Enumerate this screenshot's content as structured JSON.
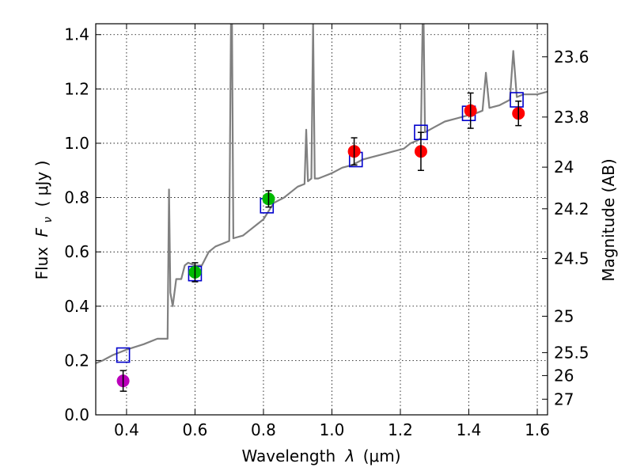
{
  "chart_data": {
    "type": "scatter",
    "title": "",
    "xlabel": "Wavelength",
    "xlabel_symbol": "λ",
    "xlabel_unit": "(μm)",
    "ylabel": "Flux",
    "ylabel_symbol": "F",
    "ylabel_subscript": "ν",
    "ylabel_unit": "( μJy )",
    "y2label": "Magnitude (AB)",
    "xlim": [
      0.31,
      1.63
    ],
    "ylim": [
      0.0,
      1.44
    ],
    "grid": true,
    "x_ticks": [
      "0.4",
      "0.6",
      "0.8",
      "1.0",
      "1.2",
      "1.4",
      "1.6"
    ],
    "y_ticks": [
      "0.0",
      "0.2",
      "0.4",
      "0.6",
      "0.8",
      "1.0",
      "1.2",
      "1.4"
    ],
    "mag_ticks": [
      "23.6",
      "23.8",
      "24",
      "24.2",
      "24.5",
      "25",
      "25.5",
      "26",
      "27"
    ],
    "colors": {
      "spectrum": "#808080",
      "model": "#0000cc",
      "uv": "#bb00bb",
      "optical": "#00bb00",
      "nir": "#ff0000",
      "grid": "#000000"
    },
    "series": [
      {
        "name": "model spectrum",
        "kind": "line",
        "points": [
          [
            0.31,
            0.19
          ],
          [
            0.33,
            0.2
          ],
          [
            0.36,
            0.22
          ],
          [
            0.4,
            0.24
          ],
          [
            0.45,
            0.26
          ],
          [
            0.49,
            0.28
          ],
          [
            0.51,
            0.28
          ],
          [
            0.52,
            0.28
          ],
          [
            0.524,
            0.83
          ],
          [
            0.528,
            0.45
          ],
          [
            0.535,
            0.4
          ],
          [
            0.545,
            0.5
          ],
          [
            0.56,
            0.5
          ],
          [
            0.57,
            0.55
          ],
          [
            0.58,
            0.56
          ],
          [
            0.6,
            0.55
          ],
          [
            0.62,
            0.55
          ],
          [
            0.64,
            0.6
          ],
          [
            0.66,
            0.62
          ],
          [
            0.68,
            0.63
          ],
          [
            0.7,
            0.64
          ],
          [
            0.705,
            1.44
          ],
          [
            0.708,
            1.44
          ],
          [
            0.712,
            0.65
          ],
          [
            0.74,
            0.66
          ],
          [
            0.76,
            0.68
          ],
          [
            0.78,
            0.7
          ],
          [
            0.8,
            0.72
          ],
          [
            0.83,
            0.78
          ],
          [
            0.86,
            0.8
          ],
          [
            0.88,
            0.82
          ],
          [
            0.9,
            0.84
          ],
          [
            0.92,
            0.85
          ],
          [
            0.925,
            1.05
          ],
          [
            0.93,
            0.86
          ],
          [
            0.94,
            0.87
          ],
          [
            0.945,
            1.44
          ],
          [
            0.95,
            0.87
          ],
          [
            0.96,
            0.87
          ],
          [
            0.98,
            0.88
          ],
          [
            1.0,
            0.89
          ],
          [
            1.03,
            0.91
          ],
          [
            1.06,
            0.92
          ],
          [
            1.09,
            0.94
          ],
          [
            1.12,
            0.95
          ],
          [
            1.15,
            0.96
          ],
          [
            1.18,
            0.97
          ],
          [
            1.21,
            0.98
          ],
          [
            1.23,
            1.0
          ],
          [
            1.25,
            1.01
          ],
          [
            1.26,
            1.02
          ],
          [
            1.265,
            1.44
          ],
          [
            1.268,
            1.44
          ],
          [
            1.272,
            1.04
          ],
          [
            1.3,
            1.06
          ],
          [
            1.33,
            1.08
          ],
          [
            1.36,
            1.09
          ],
          [
            1.39,
            1.1
          ],
          [
            1.42,
            1.11
          ],
          [
            1.44,
            1.12
          ],
          [
            1.45,
            1.26
          ],
          [
            1.46,
            1.13
          ],
          [
            1.49,
            1.14
          ],
          [
            1.52,
            1.16
          ],
          [
            1.53,
            1.34
          ],
          [
            1.54,
            1.17
          ],
          [
            1.56,
            1.18
          ],
          [
            1.6,
            1.18
          ],
          [
            1.63,
            1.19
          ]
        ]
      },
      {
        "name": "model photometry",
        "kind": "square",
        "points": [
          [
            0.39,
            0.22
          ],
          [
            0.6,
            0.52
          ],
          [
            0.81,
            0.77
          ],
          [
            1.07,
            0.94
          ],
          [
            1.26,
            1.04
          ],
          [
            1.4,
            1.11
          ],
          [
            1.54,
            1.16
          ]
        ]
      },
      {
        "name": "observed photometry",
        "kind": "point",
        "points": [
          {
            "x": 0.39,
            "y": 0.125,
            "err": 0.038,
            "group": "uv"
          },
          {
            "x": 0.6,
            "y": 0.525,
            "err": 0.035,
            "group": "optical"
          },
          {
            "x": 0.815,
            "y": 0.795,
            "err": 0.03,
            "group": "optical"
          },
          {
            "x": 1.065,
            "y": 0.97,
            "err": 0.05,
            "group": "nir"
          },
          {
            "x": 1.26,
            "y": 0.97,
            "err": 0.07,
            "group": "nir"
          },
          {
            "x": 1.405,
            "y": 1.12,
            "err": 0.065,
            "group": "nir"
          },
          {
            "x": 1.545,
            "y": 1.11,
            "err": 0.045,
            "group": "nir"
          }
        ]
      }
    ]
  }
}
